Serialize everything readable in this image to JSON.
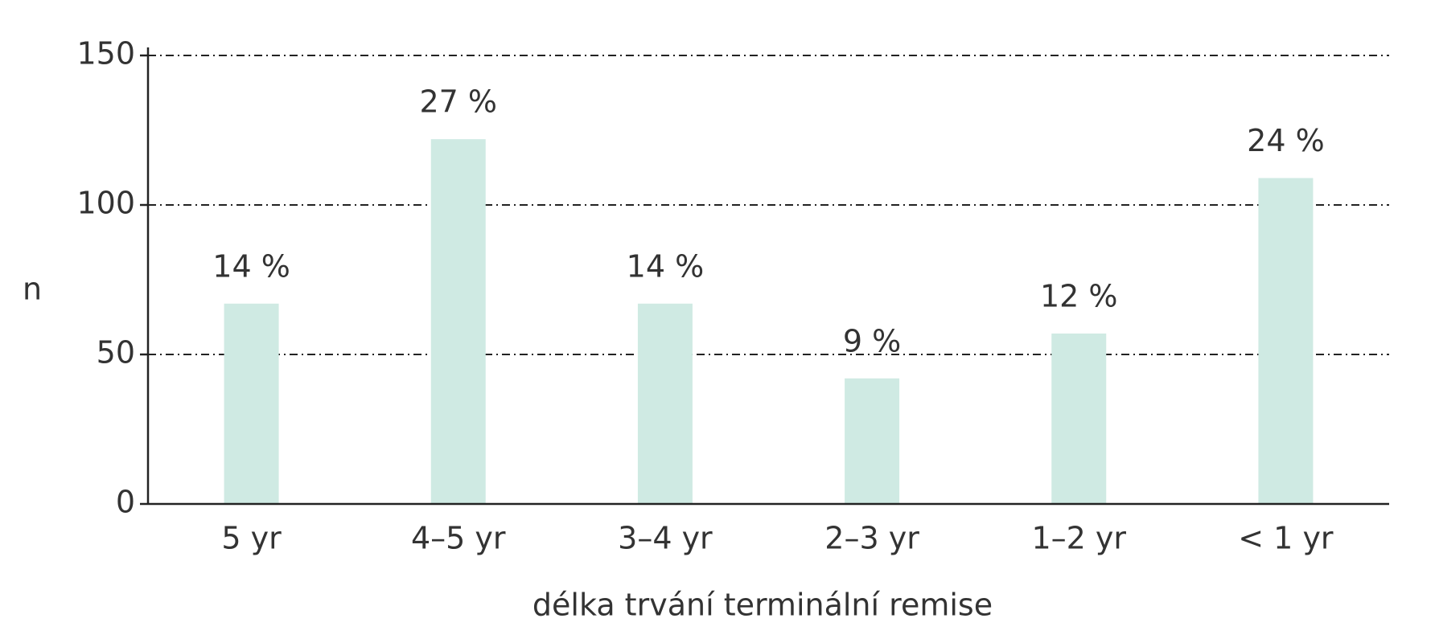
{
  "chart_data": {
    "type": "bar",
    "x_label": "délka trvání terminální remise",
    "y_label": "n",
    "categories": [
      "5 yr",
      "4–5 yr",
      "3–4 yr",
      "2–3 yr",
      "1–2 yr",
      "< 1 yr"
    ],
    "values": [
      67,
      122,
      67,
      42,
      57,
      109
    ],
    "percent_labels": [
      "14 %",
      "27 %",
      "14 %",
      "9 %",
      "12 %",
      "24 %"
    ],
    "color": "#cfeae3",
    "ylim": [
      0,
      150
    ],
    "yticks": [
      0,
      50,
      100,
      150
    ],
    "grid": true
  }
}
